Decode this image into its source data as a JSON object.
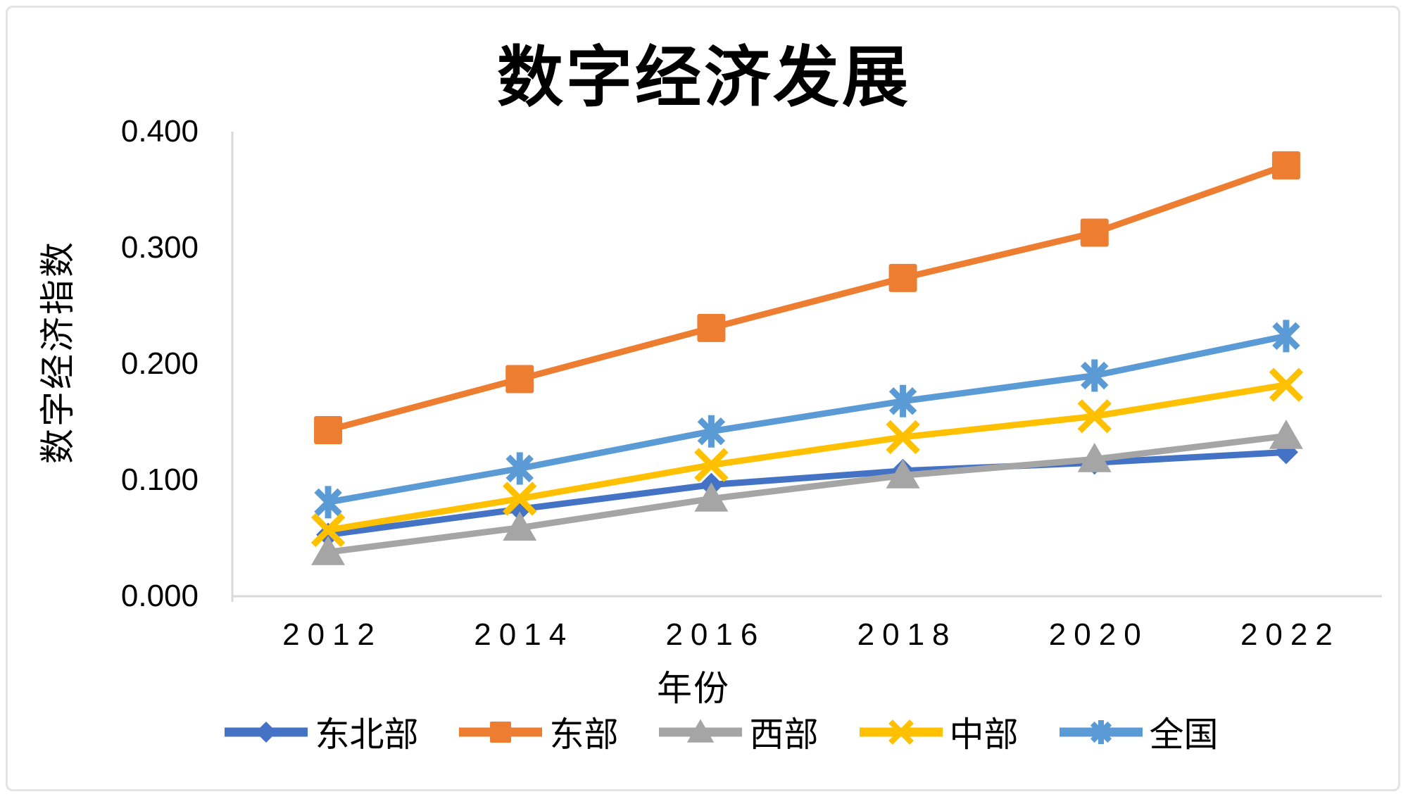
{
  "window": {
    "background": "#ffffff",
    "border_color": "#e4e4e4"
  },
  "chart_data": {
    "type": "line",
    "title": "数字经济发展",
    "xlabel": "年份",
    "ylabel": "数字经济指数",
    "categories": [
      "2012",
      "2014",
      "2016",
      "2018",
      "2020",
      "2022"
    ],
    "y_tick_labels": [
      "0.000",
      "0.100",
      "0.200",
      "0.300",
      "0.400"
    ],
    "ylim": [
      0,
      0.4
    ],
    "grid": false,
    "legend_position": "bottom",
    "axis_color": "#d9d9d9",
    "text_color": "#000000",
    "series": [
      {
        "name": "东北部",
        "color": "#4472C4",
        "marker": "diamond",
        "values": [
          0.053,
          0.075,
          0.096,
          0.108,
          0.115,
          0.124
        ]
      },
      {
        "name": "东部",
        "color": "#ED7D31",
        "marker": "square",
        "values": [
          0.143,
          0.187,
          0.231,
          0.274,
          0.313,
          0.371
        ]
      },
      {
        "name": "西部",
        "color": "#A5A5A5",
        "marker": "triangle",
        "values": [
          0.038,
          0.059,
          0.084,
          0.104,
          0.118,
          0.138
        ]
      },
      {
        "name": "中部",
        "color": "#FFC000",
        "marker": "x",
        "values": [
          0.057,
          0.084,
          0.113,
          0.137,
          0.155,
          0.182
        ]
      },
      {
        "name": "全国",
        "color": "#5B9BD5",
        "marker": "asterisk",
        "values": [
          0.081,
          0.11,
          0.142,
          0.168,
          0.19,
          0.224
        ]
      }
    ]
  }
}
